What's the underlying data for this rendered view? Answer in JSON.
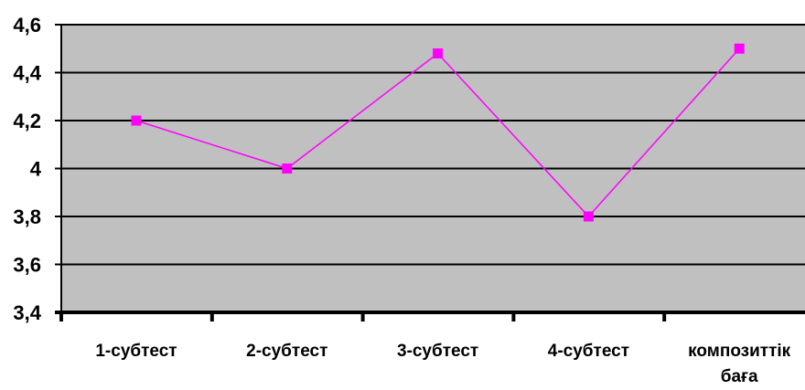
{
  "chart_data": {
    "type": "line",
    "categories": [
      "1-субтест",
      "2-субтест",
      "3-субтест",
      "4-субтест",
      [
        "композиттік",
        "баға"
      ]
    ],
    "series": [
      {
        "values": [
          4.2,
          4.0,
          4.48,
          3.8,
          4.5
        ]
      }
    ],
    "ylim": [
      3.4,
      4.6
    ],
    "yticks": [
      "4,6",
      "4,4",
      "4,2",
      "4",
      "3,8",
      "3,6",
      "3,4"
    ],
    "ytick_values": [
      4.6,
      4.4,
      4.2,
      4.0,
      3.8,
      3.6,
      3.4
    ],
    "grid": true,
    "colors": {
      "plot_background": "#c0c0c0",
      "line": "#ff00ff",
      "marker": "#ff00ff",
      "gridline": "#000000"
    },
    "marker": "square"
  }
}
